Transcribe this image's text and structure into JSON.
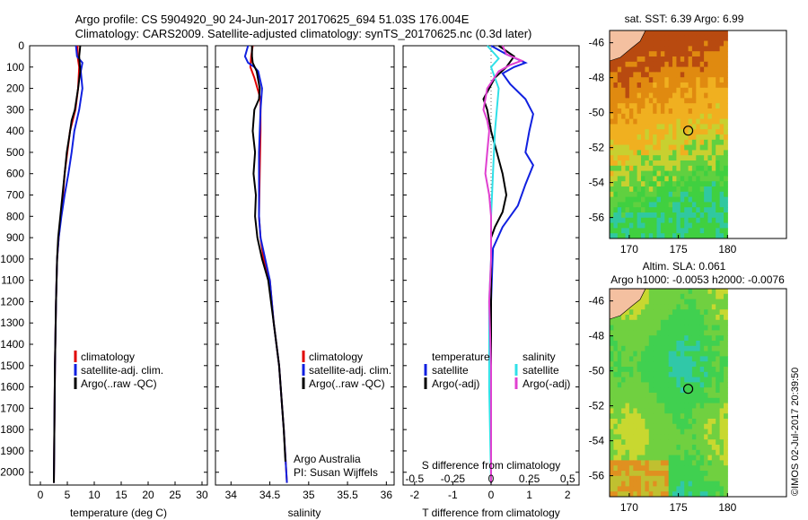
{
  "header": {
    "line1": "Argo profile: CS 5904920_90 24-Jun-2017 20170625_694 51.03S 176.004E",
    "line2": "Climatology: CARS2009. Satellite-adjusted climatology: synTS_20170625.nc (0.3d later)"
  },
  "colors": {
    "climatology": "#e00000",
    "satellite": "#1020e0",
    "argo": "#000000",
    "sat_s": "#30e0e8",
    "argo_s": "#e040d0"
  },
  "chart_data": [
    {
      "type": "line",
      "xlabel": "temperature (deg C)",
      "ylabel": "",
      "xlim": [
        -2,
        31
      ],
      "ylim": [
        2060,
        0
      ],
      "xticks": [
        "0",
        "5",
        "10",
        "15",
        "20",
        "25",
        "30"
      ],
      "yticks": [
        "0",
        "100",
        "200",
        "300",
        "400",
        "500",
        "600",
        "700",
        "800",
        "900",
        "1000",
        "1100",
        "1200",
        "1300",
        "1400",
        "1500",
        "1600",
        "1700",
        "1800",
        "1900",
        "2000"
      ],
      "legend": [
        "climatology",
        "satellite-adj. clim.",
        "Argo(..raw -QC)"
      ],
      "series": [
        {
          "name": "climatology",
          "color": "climatology",
          "points": [
            [
              6.9,
              0
            ],
            [
              6.9,
              50
            ],
            [
              7.2,
              100
            ],
            [
              7.0,
              200
            ],
            [
              6.5,
              300
            ],
            [
              5.5,
              400
            ],
            [
              5.0,
              500
            ],
            [
              4.5,
              600
            ],
            [
              4.2,
              700
            ],
            [
              3.8,
              800
            ],
            [
              3.4,
              900
            ],
            [
              3.1,
              1000
            ],
            [
              2.9,
              1200
            ],
            [
              2.7,
              1500
            ],
            [
              2.5,
              2050
            ]
          ]
        },
        {
          "name": "satellite-adj. clim.",
          "color": "satellite",
          "points": [
            [
              6.6,
              0
            ],
            [
              6.8,
              50
            ],
            [
              7.8,
              80
            ],
            [
              7.5,
              120
            ],
            [
              7.8,
              200
            ],
            [
              7.2,
              300
            ],
            [
              6.3,
              400
            ],
            [
              5.8,
              500
            ],
            [
              5.2,
              600
            ],
            [
              4.5,
              700
            ],
            [
              3.9,
              800
            ],
            [
              3.4,
              900
            ],
            [
              3.1,
              1000
            ],
            [
              2.9,
              1200
            ],
            [
              2.7,
              1500
            ],
            [
              2.5,
              2050
            ]
          ]
        },
        {
          "name": "Argo(..raw -QC)",
          "color": "argo",
          "points": [
            [
              7.4,
              0
            ],
            [
              7.2,
              50
            ],
            [
              7.4,
              120
            ],
            [
              7.0,
              200
            ],
            [
              6.4,
              300
            ],
            [
              5.8,
              350
            ],
            [
              5.4,
              420
            ],
            [
              4.9,
              500
            ],
            [
              4.5,
              600
            ],
            [
              4.1,
              700
            ],
            [
              3.7,
              800
            ],
            [
              3.3,
              900
            ],
            [
              3.1,
              1000
            ],
            [
              2.9,
              1200
            ],
            [
              2.7,
              1500
            ],
            [
              2.5,
              2050
            ]
          ]
        }
      ]
    },
    {
      "type": "line",
      "xlabel": "salinity",
      "xlim": [
        33.8,
        36.1
      ],
      "ylim": [
        2060,
        0
      ],
      "xticks": [
        "34",
        "34.5",
        "35",
        "35.5",
        "36"
      ],
      "legend": [
        "climatology",
        "satellite-adj. clim.",
        "Argo(..raw -QC)"
      ],
      "note1": "Argo Australia",
      "note2": "PI: Susan Wijffels",
      "series": [
        {
          "name": "climatology",
          "color": "climatology",
          "points": [
            [
              34.28,
              0
            ],
            [
              34.26,
              50
            ],
            [
              34.25,
              100
            ],
            [
              34.3,
              150
            ],
            [
              34.38,
              250
            ],
            [
              34.38,
              400
            ],
            [
              34.37,
              600
            ],
            [
              34.36,
              800
            ],
            [
              34.38,
              900
            ],
            [
              34.42,
              1000
            ],
            [
              34.5,
              1100
            ],
            [
              34.55,
              1300
            ],
            [
              34.62,
              1500
            ],
            [
              34.68,
              1800
            ],
            [
              34.72,
              2050
            ]
          ]
        },
        {
          "name": "satellite-adj. clim.",
          "color": "satellite",
          "points": [
            [
              34.22,
              0
            ],
            [
              34.18,
              50
            ],
            [
              34.22,
              80
            ],
            [
              34.3,
              100
            ],
            [
              34.35,
              120
            ],
            [
              34.4,
              200
            ],
            [
              34.38,
              300
            ],
            [
              34.36,
              500
            ],
            [
              34.36,
              800
            ],
            [
              34.38,
              900
            ],
            [
              34.44,
              1000
            ],
            [
              34.5,
              1100
            ],
            [
              34.55,
              1300
            ],
            [
              34.62,
              1500
            ],
            [
              34.68,
              1800
            ],
            [
              34.72,
              2050
            ]
          ]
        },
        {
          "name": "Argo(..raw -QC)",
          "color": "argo",
          "points": [
            [
              34.27,
              0
            ],
            [
              34.27,
              50
            ],
            [
              34.28,
              80
            ],
            [
              34.33,
              120
            ],
            [
              34.37,
              200
            ],
            [
              34.36,
              250
            ],
            [
              34.3,
              300
            ],
            [
              34.28,
              400
            ],
            [
              34.31,
              500
            ],
            [
              34.29,
              600
            ],
            [
              34.32,
              700
            ],
            [
              34.31,
              800
            ],
            [
              34.34,
              900
            ],
            [
              34.4,
              1000
            ],
            [
              34.48,
              1100
            ],
            [
              34.55,
              1300
            ],
            [
              34.62,
              1500
            ],
            [
              34.68,
              1800
            ],
            [
              34.7,
              1950
            ]
          ]
        }
      ]
    },
    {
      "type": "line",
      "xlabel": "T difference from climatology",
      "xlabel2": "S difference from climatology",
      "xlim": [
        -2.3,
        2.3
      ],
      "ylim": [
        2060,
        0
      ],
      "xticks": [
        "-2",
        "-1",
        "0",
        "1",
        "2"
      ],
      "xticks2": [
        "-0.5",
        "-0.25",
        "0",
        "0.25",
        "0.5"
      ],
      "legend_titles": [
        "temperature",
        "salinity"
      ],
      "legend": [
        "satellite",
        "Argo(-adj)",
        "satellite",
        "Argo(-adj)"
      ],
      "series": [
        {
          "name": "satellite",
          "color": "satellite",
          "points": [
            [
              0.0,
              0
            ],
            [
              0.4,
              40
            ],
            [
              0.9,
              80
            ],
            [
              0.6,
              100
            ],
            [
              0.3,
              130
            ],
            [
              0.5,
              180
            ],
            [
              0.9,
              250
            ],
            [
              1.1,
              320
            ],
            [
              1.0,
              400
            ],
            [
              0.9,
              500
            ],
            [
              1.1,
              560
            ],
            [
              0.9,
              650
            ],
            [
              0.7,
              750
            ],
            [
              0.3,
              850
            ],
            [
              0.05,
              950
            ],
            [
              0.0,
              1200
            ],
            [
              0.0,
              2050
            ]
          ]
        },
        {
          "name": "Argo(-adj)",
          "color": "argo",
          "points": [
            [
              0.2,
              0
            ],
            [
              0.6,
              50
            ],
            [
              0.4,
              100
            ],
            [
              0.1,
              150
            ],
            [
              -0.2,
              250
            ],
            [
              -0.1,
              300
            ],
            [
              0.0,
              400
            ],
            [
              0.15,
              500
            ],
            [
              0.3,
              600
            ],
            [
              0.4,
              700
            ],
            [
              0.3,
              780
            ],
            [
              0.1,
              850
            ],
            [
              0.0,
              900
            ],
            [
              0.0,
              1100
            ],
            [
              0.0,
              1400
            ],
            [
              0.0,
              2050
            ]
          ]
        },
        {
          "name": "satellite",
          "color": "sat_s",
          "points": [
            [
              -0.1,
              0
            ],
            [
              0.1,
              40
            ],
            [
              0.2,
              60
            ],
            [
              0.0,
              100
            ],
            [
              0.2,
              200
            ],
            [
              0.15,
              300
            ],
            [
              0.1,
              400
            ],
            [
              0.05,
              600
            ],
            [
              0.0,
              800
            ],
            [
              0.0,
              1000
            ],
            [
              -0.05,
              1200
            ],
            [
              -0.05,
              1600
            ],
            [
              0.0,
              2050
            ]
          ]
        },
        {
          "name": "Argo(-adj)",
          "color": "argo_s",
          "points": [
            [
              0.3,
              0
            ],
            [
              0.4,
              40
            ],
            [
              0.8,
              70
            ],
            [
              0.5,
              90
            ],
            [
              0.2,
              120
            ],
            [
              -0.1,
              200
            ],
            [
              -0.2,
              300
            ],
            [
              -0.1,
              350
            ],
            [
              -0.05,
              400
            ],
            [
              -0.1,
              500
            ],
            [
              -0.15,
              600
            ],
            [
              -0.05,
              700
            ],
            [
              0.0,
              800
            ],
            [
              0.0,
              1000
            ],
            [
              -0.05,
              1200
            ],
            [
              0.0,
              1500
            ],
            [
              0.0,
              2050
            ]
          ]
        }
      ]
    },
    {
      "type": "heatmap",
      "title": "sat. SST: 6.39  Argo: 6.99",
      "xticks": [
        "170",
        "175",
        "180"
      ],
      "yticks": [
        "-46",
        "-48",
        "-50",
        "-52",
        "-54",
        "-56"
      ],
      "xlim": [
        168,
        186
      ],
      "ylim": [
        -57.2,
        -45.3
      ],
      "marker": [
        176.0,
        -51.03
      ]
    },
    {
      "type": "heatmap",
      "title": "Altim. SLA: 0.061",
      "subtitle": "Argo h1000: -0.0053 h2000: -0.0076",
      "xticks": [
        "170",
        "175",
        "180"
      ],
      "yticks": [
        "-46",
        "-48",
        "-50",
        "-52",
        "-54",
        "-56"
      ],
      "xlim": [
        168,
        186
      ],
      "ylim": [
        -57.2,
        -45.3
      ],
      "marker": [
        176.0,
        -51.03
      ]
    }
  ],
  "side_stamp": "©IMOS 02-Jul-2017 20:39:50"
}
